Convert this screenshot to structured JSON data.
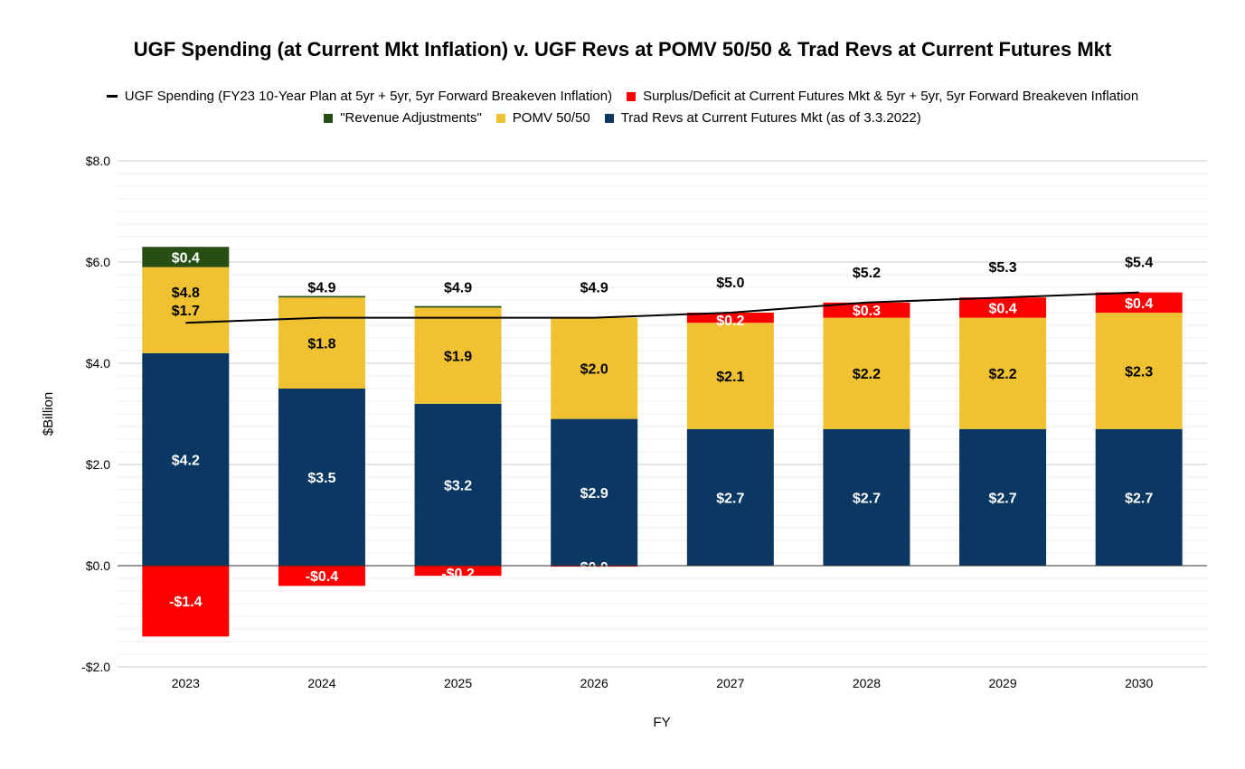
{
  "chart_data": {
    "type": "bar",
    "title": "UGF Spending (at Current Mkt Inflation) v. UGF Revs at POMV 50/50 & Trad Revs at Current Futures Mkt",
    "xlabel": "FY",
    "ylabel": "$Billion",
    "ylim": [
      -2.0,
      8.0
    ],
    "yticks": [
      -2.0,
      0.0,
      2.0,
      4.0,
      6.0,
      8.0
    ],
    "ytick_labels": [
      "-$2.0",
      "$0.0",
      "$2.0",
      "$4.0",
      "$6.0",
      "$8.0"
    ],
    "grid": true,
    "legend_position": "top",
    "categories": [
      "2023",
      "2024",
      "2025",
      "2026",
      "2027",
      "2028",
      "2029",
      "2030"
    ],
    "series": [
      {
        "name": "Trad Revs at Current Futures Mkt (as of 3.3.2022)",
        "kind": "bar",
        "color": "#0b3763",
        "values": [
          4.2,
          3.5,
          3.2,
          2.9,
          2.7,
          2.7,
          2.7,
          2.7
        ],
        "labels": [
          "$4.2",
          "$3.5",
          "$3.2",
          "$2.9",
          "$2.7",
          "$2.7",
          "$2.7",
          "$2.7"
        ]
      },
      {
        "name": "POMV 50/50",
        "kind": "bar",
        "color": "#f0c232",
        "values": [
          1.7,
          1.8,
          1.9,
          2.0,
          2.1,
          2.2,
          2.2,
          2.3
        ],
        "labels": [
          "$1.7",
          "$1.8",
          "$1.9",
          "$2.0",
          "$2.1",
          "$2.2",
          "$2.2",
          "$2.3"
        ]
      },
      {
        "name": "\"Revenue Adjustments\"",
        "kind": "bar",
        "color": "#274e13",
        "values": [
          0.4,
          0.03,
          0.03,
          0.0,
          0.0,
          0.0,
          0.0,
          0.0
        ],
        "labels": [
          "$0.4",
          "",
          "",
          "",
          "",
          "",
          "",
          ""
        ]
      },
      {
        "name": "Surplus/Deficit at Current Futures Mkt & 5yr + 5yr, 5yr Forward Breakeven Inflation",
        "kind": "bar",
        "color": "#ff0000",
        "values": [
          -1.4,
          -0.4,
          -0.2,
          -0.02,
          0.2,
          0.3,
          0.4,
          0.4
        ],
        "labels": [
          "-$1.4",
          "-$0.4",
          "-$0.2",
          "$0.0",
          "$0.2",
          "$0.3",
          "$0.4",
          "$0.4"
        ]
      },
      {
        "name": "UGF Spending (FY23 10-Year Plan at 5yr + 5yr, 5yr Forward Breakeven Inflation)",
        "kind": "line",
        "color": "#000000",
        "values": [
          4.8,
          4.9,
          4.9,
          4.9,
          5.0,
          5.2,
          5.3,
          5.4
        ],
        "labels": [
          "$4.8",
          "$4.9",
          "$4.9",
          "$4.9",
          "$5.0",
          "$5.2",
          "$5.3",
          "$5.4"
        ]
      }
    ]
  }
}
